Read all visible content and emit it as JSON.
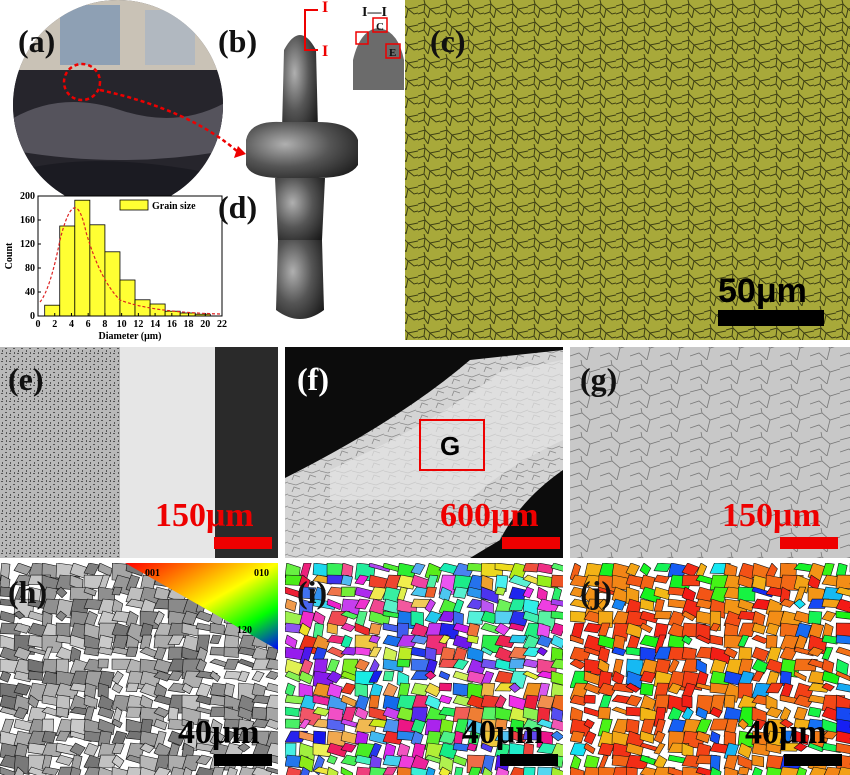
{
  "panel_labels": [
    "(a)",
    "(b)",
    "(c)",
    "(d)",
    "(e)",
    "(f)",
    "(g)",
    "(h)",
    "(i)",
    "(j)"
  ],
  "scale_bars": {
    "c": "50μm",
    "e": "150μm",
    "f": "600μm",
    "g": "150μm",
    "h": "40μm",
    "i": "40μm",
    "j": "40μm"
  },
  "annotations": {
    "section_marker_top": "I",
    "section_marker_bottom": "I",
    "section_label": "I—I",
    "region_c": "C",
    "region_e": "E",
    "region_g": "G"
  },
  "ipf_key": [
    "001",
    "010",
    "120"
  ],
  "chart_data": {
    "type": "histogram",
    "legend": "Grain size",
    "x_label": "Diameter (μm)",
    "y_label": "Count",
    "bins": [
      0.8,
      2.6,
      4.4,
      6.2,
      8.0,
      9.8,
      11.6,
      13.4,
      15.2,
      17.0,
      18.8,
      20.6
    ],
    "values": [
      18,
      150,
      193,
      152,
      107,
      60,
      27,
      20,
      8,
      5,
      3
    ],
    "color": "#ffff33",
    "xlim": [
      0,
      22
    ],
    "ylim": [
      0,
      200
    ],
    "xticks": [
      0,
      2,
      4,
      6,
      8,
      10,
      12,
      14,
      16,
      18,
      20,
      22
    ],
    "yticks": [
      0,
      40,
      80,
      120,
      160,
      200
    ]
  }
}
